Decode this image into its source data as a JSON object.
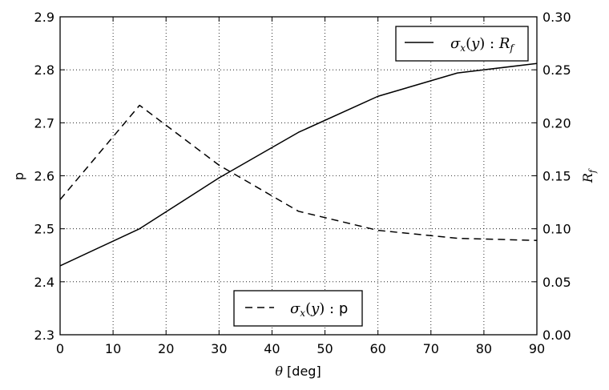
{
  "chart_data": {
    "type": "line",
    "grid": true,
    "x": [
      0,
      15,
      30,
      45,
      60,
      75,
      90
    ],
    "x_ticks": [
      0,
      10,
      20,
      30,
      40,
      50,
      60,
      70,
      80,
      90
    ],
    "xlim": [
      0,
      90
    ],
    "xlabel": {
      "symbol": "θ",
      "unit": " [deg]"
    },
    "y_left": {
      "label": "p",
      "ylim": [
        2.3,
        2.9
      ],
      "ticks": [
        2.3,
        2.4,
        2.5,
        2.6,
        2.7,
        2.8,
        2.9
      ],
      "tick_labels": [
        "2.3",
        "2.4",
        "2.5",
        "2.6",
        "2.7",
        "2.8",
        "2.9"
      ]
    },
    "y_right": {
      "label": "R_f",
      "ylim": [
        0.0,
        0.3
      ],
      "ticks": [
        0.0,
        0.05,
        0.1,
        0.15,
        0.2,
        0.25,
        0.3
      ],
      "tick_labels": [
        "0.00",
        "0.05",
        "0.10",
        "0.15",
        "0.20",
        "0.25",
        "0.30"
      ]
    },
    "series": [
      {
        "legend_text": "σx(y) : Rf",
        "axis": "right",
        "line_style": "solid",
        "color": "#000000",
        "values": [
          0.065,
          0.1,
          0.148,
          0.191,
          0.225,
          0.247,
          0.256
        ],
        "legend_position": "upper-right"
      },
      {
        "legend_text": "σx(y) :  p",
        "axis": "left",
        "line_style": "dashed",
        "color": "#000000",
        "values": [
          2.555,
          2.733,
          2.62,
          2.533,
          2.497,
          2.482,
          2.478
        ],
        "legend_position": "lower-center"
      }
    ]
  }
}
